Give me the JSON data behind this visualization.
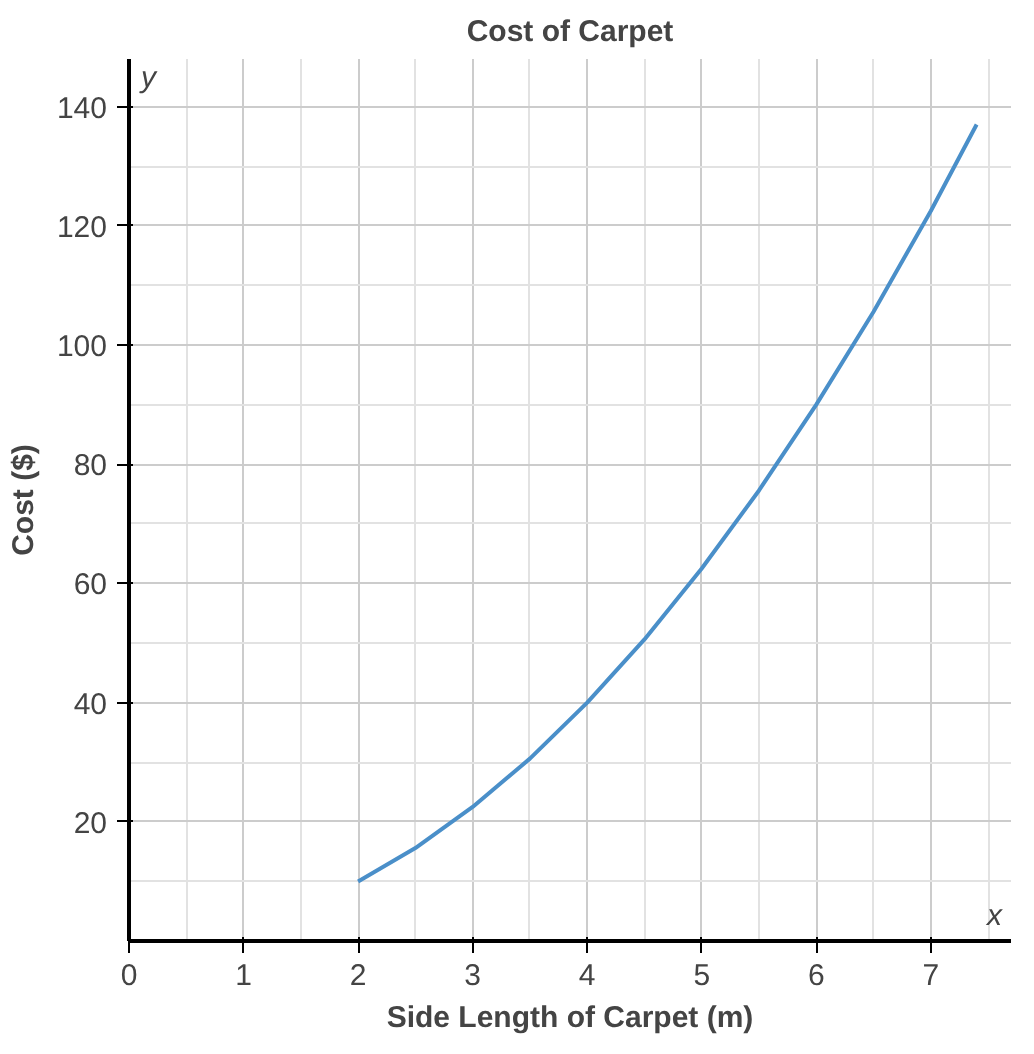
{
  "chart_data": {
    "type": "line",
    "title": "Cost of Carpet",
    "xlabel": "Side Length of Carpet (m)",
    "ylabel": "Cost ($)",
    "annotations": [
      "y",
      "x"
    ],
    "x": [
      2,
      2.5,
      3,
      3.5,
      4,
      4.5,
      5,
      5.5,
      6,
      6.5,
      7,
      7.4
    ],
    "series": [
      {
        "color": "#4a8fc9",
        "values": [
          10,
          15.6,
          22.5,
          30.6,
          40,
          50.6,
          62.5,
          75.6,
          90,
          105.6,
          122.5,
          137
        ]
      }
    ],
    "xlim": [
      0,
      7.7
    ],
    "ylim": [
      0,
      148
    ],
    "xticks": [
      0,
      1,
      2,
      3,
      4,
      5,
      6,
      7
    ],
    "yticks": [
      20,
      40,
      60,
      80,
      100,
      120,
      140
    ],
    "grid": true,
    "marker": "none",
    "line_style": "solid"
  }
}
